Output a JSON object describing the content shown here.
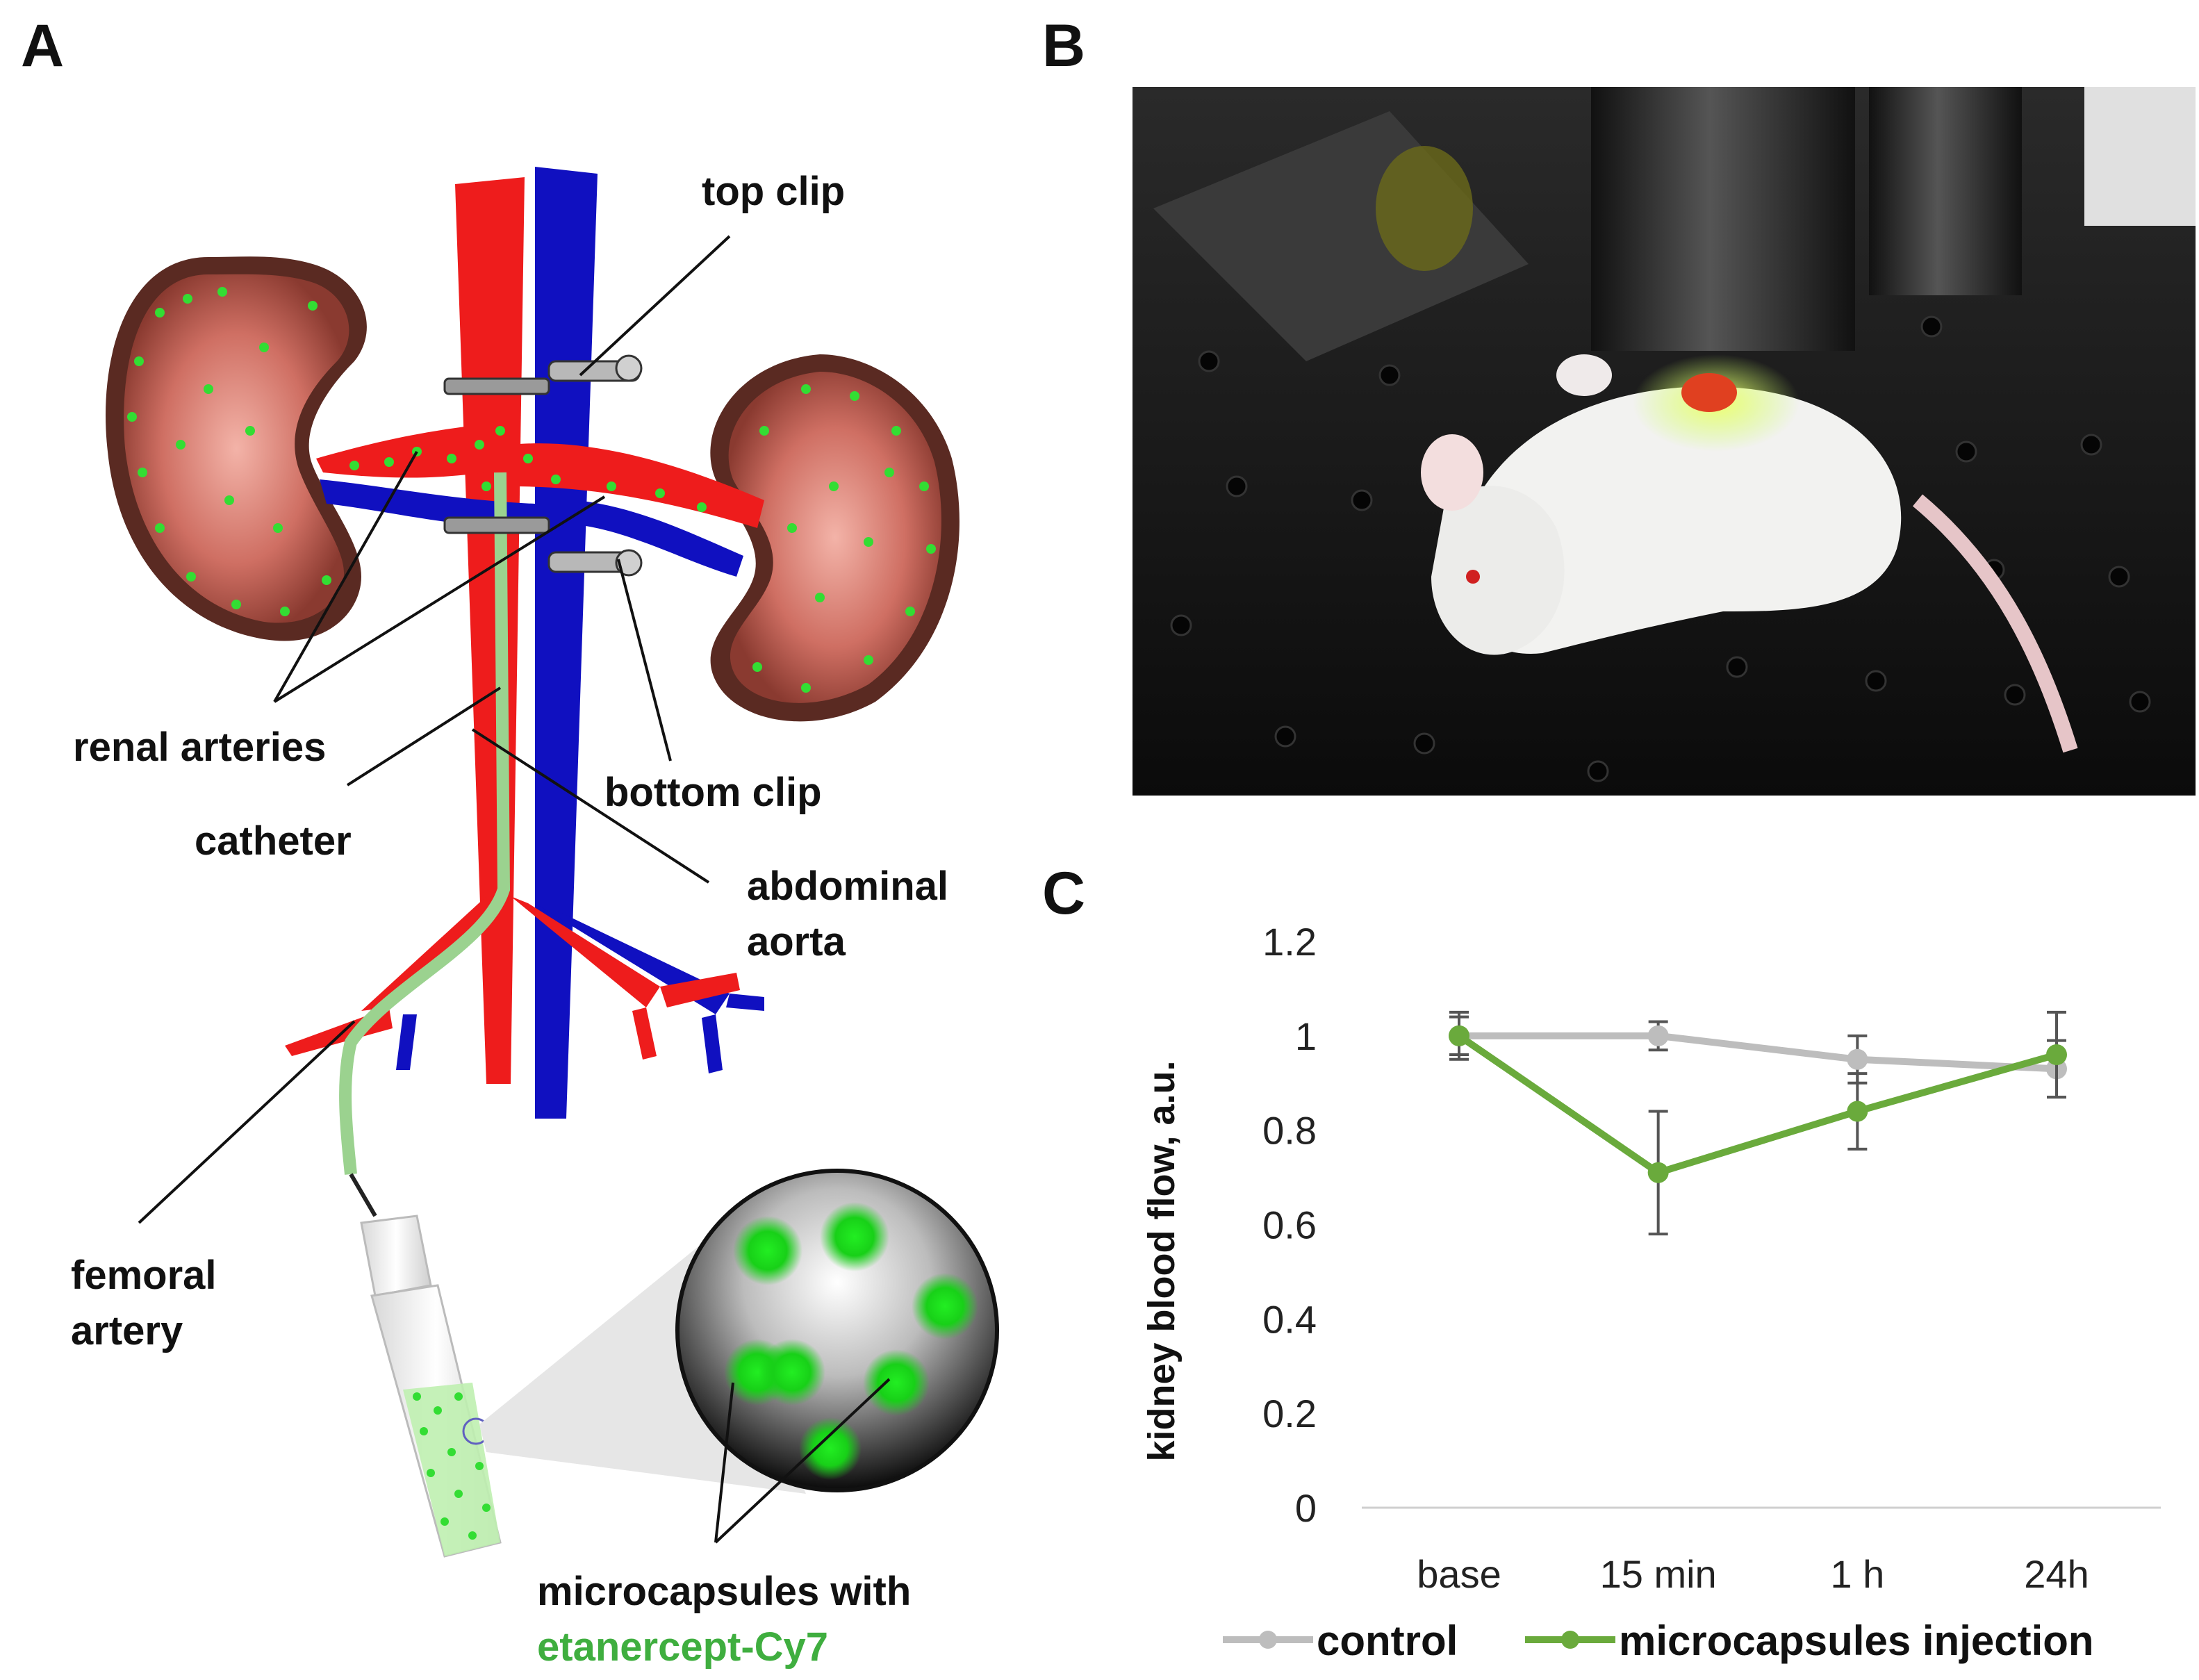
{
  "panels": {
    "a": "A",
    "b": "B",
    "c": "C"
  },
  "diagram_labels": {
    "top_clip": "top clip",
    "renal_arteries": "renal arteries",
    "bottom_clip": "bottom clip",
    "catheter": "catheter",
    "abdominal": "abdominal",
    "aorta": "aorta",
    "femoral": "femoral",
    "artery": "artery",
    "microcapsules_with": "microcapsules with",
    "etanercept": "etanercept-Cy7"
  },
  "colors": {
    "artery_red": "#ee1c1c",
    "vein_blue": "#1010c0",
    "capsule_green": "#33dd33",
    "control_gray": "#bdbdbd",
    "microcapsules_green": "#6aaa3c",
    "kidney_brown": "#5a2a22"
  },
  "chart_data": {
    "type": "line",
    "title": "",
    "xlabel": "",
    "ylabel": "kidney blood flow, a.u.",
    "categories": [
      "base",
      "15 min",
      "1 h",
      "24h"
    ],
    "ylim": [
      0,
      1.2
    ],
    "yticks": [
      "0",
      "0.2",
      "0.4",
      "0.6",
      "0.8",
      "1",
      "1.2"
    ],
    "legend_position": "bottom",
    "series": [
      {
        "name": "control",
        "values": [
          1.0,
          1.0,
          0.95,
          0.93
        ],
        "errors": [
          0.04,
          0.03,
          0.05,
          0.06
        ],
        "color": "#bdbdbd"
      },
      {
        "name": "microcapsules injection",
        "values": [
          1.0,
          0.71,
          0.84,
          0.96
        ],
        "errors": [
          0.05,
          0.13,
          0.08,
          0.09
        ],
        "color": "#6aaa3c"
      }
    ]
  }
}
